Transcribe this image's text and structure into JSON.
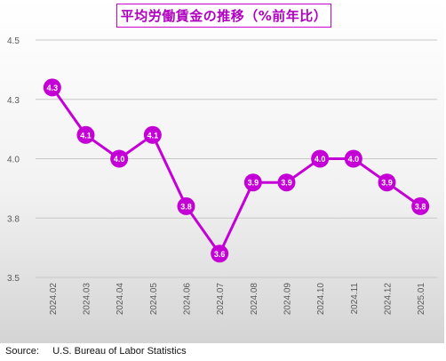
{
  "title": "平均労働賃金の推移（%前年比）",
  "source_label": "Source:",
  "source_text": "U.S. Bureau of Labor Statistics",
  "colors": {
    "series": "#c400d6",
    "grid": "#c8c8c8",
    "axis_text": "#595959",
    "label_text": "#ffffff"
  },
  "chart_data": {
    "type": "line",
    "title": "平均労働賃金の推移（%前年比）",
    "categories": [
      "2024.02",
      "2024.03",
      "2024.04",
      "2024.05",
      "2024.06",
      "2024.07",
      "2024.08",
      "2024.09",
      "2024.10",
      "2024.11",
      "2024.12",
      "2025.01"
    ],
    "series": [
      {
        "values": [
          4.3,
          4.1,
          4.0,
          4.1,
          3.8,
          3.6,
          3.9,
          3.9,
          4.0,
          4.0,
          3.9,
          3.8
        ],
        "labels": [
          "4.3",
          "4.1",
          "4.0",
          "4.1",
          "3.8",
          "3.6",
          "3.9",
          "3.9",
          "4.0",
          "4.0",
          "3.9",
          "3.8"
        ]
      }
    ],
    "yticks": [
      {
        "value": 3.5,
        "label": "3.5"
      },
      {
        "value": 3.75,
        "label": "3.8"
      },
      {
        "value": 4.0,
        "label": "4.0"
      },
      {
        "value": 4.25,
        "label": "4.3"
      },
      {
        "value": 4.5,
        "label": "4.5"
      }
    ],
    "ylim": [
      3.5,
      4.5
    ],
    "grid": true,
    "legend": "none"
  }
}
